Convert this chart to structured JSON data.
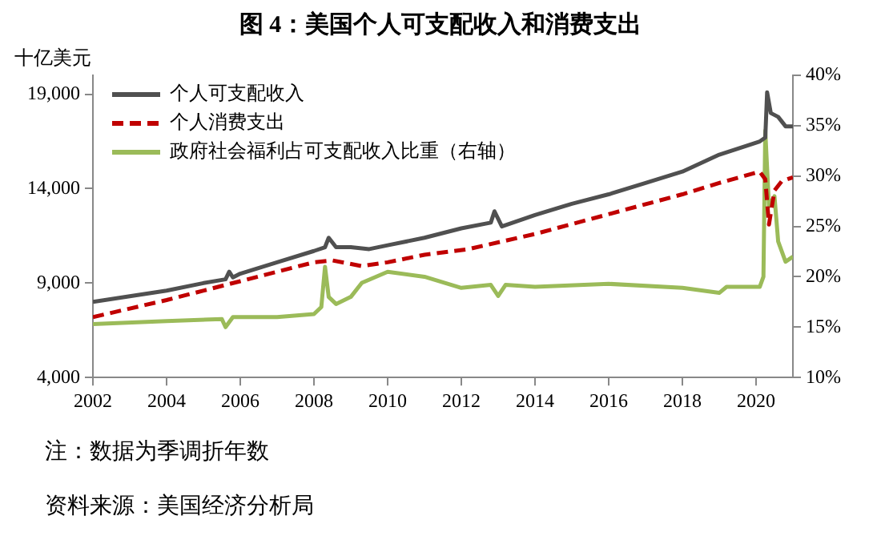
{
  "chart_data": {
    "type": "line",
    "title": "图 4：美国个人可支配收入和消费支出",
    "ylabel": "十亿美元",
    "annotations": [
      "注：数据为季调折年数",
      "资料来源：美国经济分析局"
    ],
    "xlim": [
      2002,
      2021
    ],
    "xticks": [
      2002,
      2004,
      2006,
      2008,
      2010,
      2012,
      2014,
      2016,
      2018,
      2020
    ],
    "ylim": [
      4000,
      20000
    ],
    "yticks": [
      {
        "value": 4000,
        "label": "4,000"
      },
      {
        "value": 9000,
        "label": "9,000"
      },
      {
        "value": 14000,
        "label": "14,000"
      },
      {
        "value": 19000,
        "label": "19,000"
      }
    ],
    "y2lim": [
      10,
      40
    ],
    "y2ticks": [
      {
        "value": 10,
        "label": "10%"
      },
      {
        "value": 15,
        "label": "15%"
      },
      {
        "value": 20,
        "label": "20%"
      },
      {
        "value": 25,
        "label": "25%"
      },
      {
        "value": 30,
        "label": "30%"
      },
      {
        "value": 35,
        "label": "35%"
      },
      {
        "value": 40,
        "label": "40%"
      }
    ],
    "grid": false,
    "legend": "top left",
    "marker": "none",
    "series": [
      {
        "name": "个人可支配收入",
        "color": "#505050",
        "line_style": "solid",
        "x": [
          2002,
          2003,
          2004,
          2005,
          2005.6,
          2005.7,
          2005.8,
          2006,
          2007,
          2008,
          2008.3,
          2008.4,
          2008.6,
          2009,
          2009.5,
          2010,
          2011,
          2012,
          2012.8,
          2012.9,
          2013.1,
          2014,
          2015,
          2016,
          2017,
          2018,
          2019,
          2020.1,
          2020.25,
          2020.3,
          2020.4,
          2020.6,
          2020.8,
          2021
        ],
        "values": [
          8000,
          8300,
          8600,
          9000,
          9200,
          9600,
          9300,
          9500,
          10100,
          10700,
          10900,
          11400,
          10900,
          10900,
          10800,
          11000,
          11400,
          11900,
          12200,
          12800,
          12000,
          12600,
          13200,
          13700,
          14300,
          14900,
          15800,
          16500,
          16700,
          19100,
          18000,
          17800,
          17300,
          17300
        ]
      },
      {
        "name": "个人消费支出",
        "color": "#c00000",
        "line_style": "dashed",
        "x": [
          2002,
          2004,
          2006,
          2008,
          2008.5,
          2009.3,
          2010,
          2011,
          2012.2,
          2014,
          2016.1,
          2018,
          2019,
          2020.1,
          2020.25,
          2020.35,
          2020.5,
          2020.7,
          2021
        ],
        "values": [
          7200,
          8100,
          9100,
          10100,
          10200,
          9900,
          10100,
          10500,
          10800,
          11600,
          12700,
          13700,
          14300,
          14900,
          14500,
          12100,
          13900,
          14400,
          14600
        ]
      },
      {
        "name": "政府社会福利占可支配收入比重（右轴）",
        "color": "#9bbb59",
        "line_style": "solid",
        "axis": "y2",
        "x": [
          2002,
          2004,
          2005.5,
          2005.6,
          2005.8,
          2007,
          2008,
          2008.2,
          2008.3,
          2008.4,
          2008.6,
          2009,
          2009.3,
          2010,
          2011,
          2012,
          2012.8,
          2013,
          2013.2,
          2014,
          2016,
          2018,
          2019,
          2019.2,
          2020.1,
          2020.2,
          2020.25,
          2020.35,
          2020.5,
          2020.6,
          2020.8,
          2021
        ],
        "values": [
          15.3,
          15.6,
          15.8,
          15.0,
          16.0,
          16.0,
          16.3,
          17.0,
          21.0,
          18.0,
          17.3,
          18.0,
          19.4,
          20.5,
          20.0,
          18.9,
          19.2,
          18.1,
          19.2,
          19.0,
          19.3,
          18.9,
          18.4,
          19.0,
          19.0,
          20.0,
          34.5,
          27,
          28,
          23.5,
          21.5,
          22
        ]
      }
    ]
  }
}
